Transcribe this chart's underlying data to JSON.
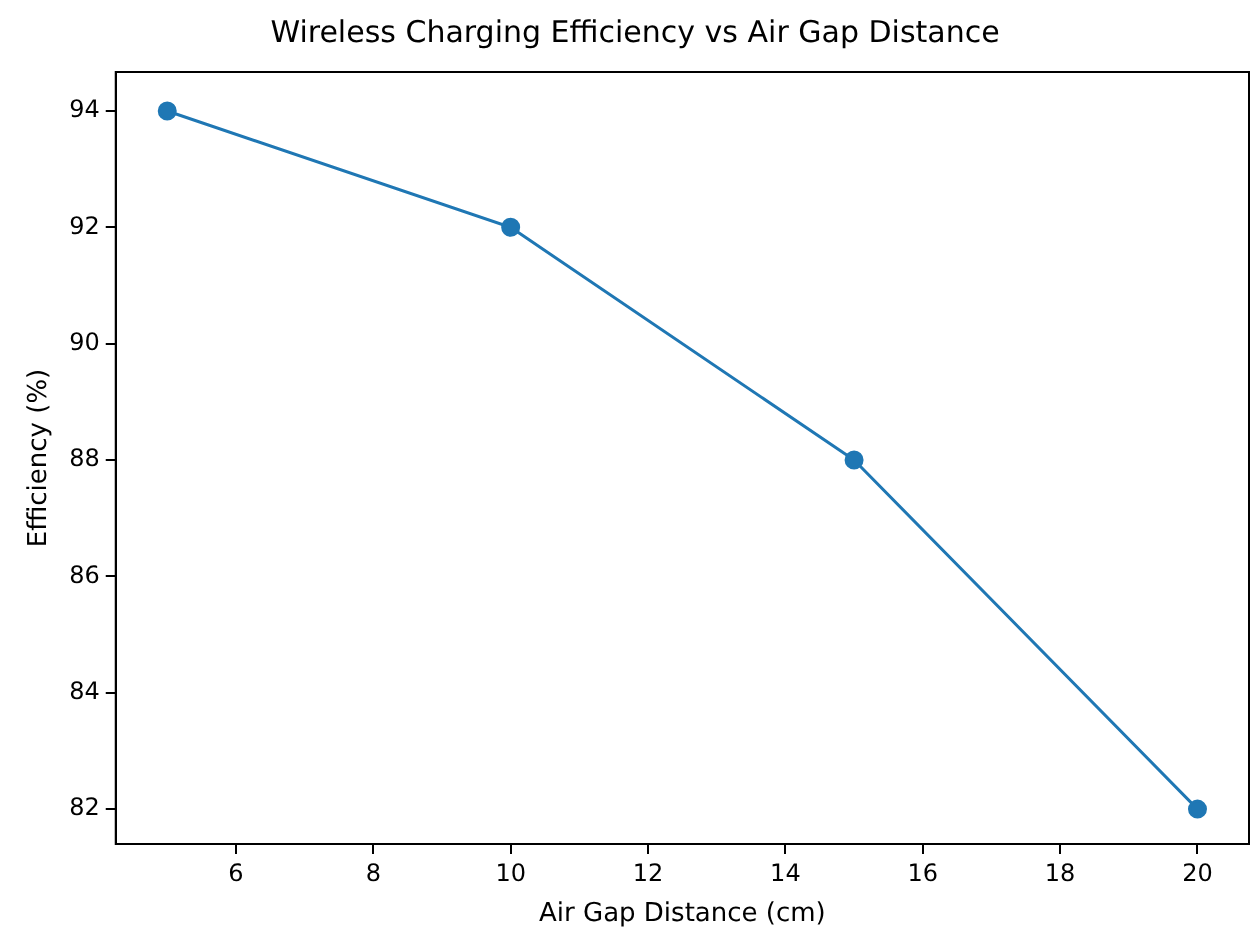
{
  "chart_data": {
    "type": "line",
    "title": "Wireless Charging Efficiency vs Air Gap Distance",
    "xlabel": "Air Gap Distance (cm)",
    "ylabel": "Efficiency (%)",
    "x": [
      5,
      10,
      15,
      20
    ],
    "series": [
      {
        "color": "#1f77b4",
        "values": [
          94,
          92,
          88,
          82
        ]
      }
    ],
    "xlim": [
      4.25,
      20.75
    ],
    "xticks": [
      6,
      8,
      10,
      12,
      14,
      16,
      18,
      20
    ],
    "ylim": [
      81.4,
      94.67
    ],
    "yticks": [
      82,
      84,
      86,
      88,
      90,
      92,
      94
    ],
    "grid": false,
    "legend": false,
    "marker": "circle",
    "line_style": "solid"
  }
}
